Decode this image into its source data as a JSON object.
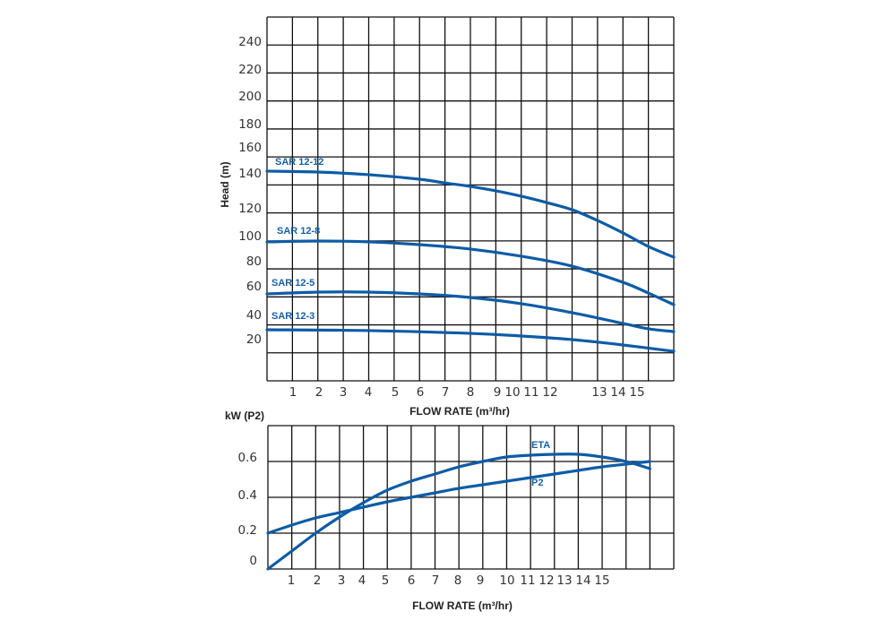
{
  "chart_data": [
    {
      "type": "line",
      "title": "",
      "xlabel": "FLOW RATE (m³/hr)",
      "ylabel": "Head (m)",
      "x_unit_note": "x values are grid-column index 0-16",
      "xlim": [
        0,
        16
      ],
      "ylim": [
        0,
        260
      ],
      "grid": true,
      "x_tick_labels": [
        "1",
        "2",
        "3",
        "4",
        "5",
        "6",
        "7",
        "8",
        "9",
        "10",
        "11",
        "12",
        "13",
        "14",
        "15"
      ],
      "y_tick_labels": [
        "240",
        "220",
        "200",
        "180",
        "160",
        "140",
        "120",
        "100",
        "80",
        "60",
        "40",
        "20"
      ],
      "color": "#0d5ca6",
      "series": [
        {
          "name": "SAR 12-12",
          "x": [
            0,
            2,
            4,
            6,
            7,
            8,
            9,
            10,
            11,
            12,
            13,
            14,
            15,
            16
          ],
          "y": [
            141.6,
            140.9,
            139,
            135.7,
            133,
            130.5,
            127.3,
            123.4,
            118.8,
            113.6,
            105.8,
            96.8,
            87,
            79.2
          ]
        },
        {
          "name": "SAR 12-8",
          "x": [
            0,
            2,
            4,
            6,
            8,
            10,
            12,
            14,
            15,
            16
          ],
          "y": [
            90.3,
            90.9,
            90.3,
            88.3,
            85.1,
            79.9,
            72.7,
            61,
            53.2,
            44.8
          ]
        },
        {
          "name": "SAR 12-5",
          "x": [
            0,
            2,
            4,
            6,
            8,
            10,
            12,
            14,
            15,
            16
          ],
          "y": [
            52.6,
            53.9,
            53.9,
            52.6,
            50,
            45.5,
            39,
            31.2,
            27.3,
            25.3
          ]
        },
        {
          "name": "SAR 12-3",
          "x": [
            0,
            4,
            8,
            10,
            12,
            14,
            16
          ],
          "y": [
            26.6,
            26,
            24,
            22.1,
            19.5,
            15.6,
            11
          ]
        }
      ]
    },
    {
      "type": "line",
      "title": "",
      "xlabel": "FLOW RATE (m³/hr)",
      "ylabel": "kW (P2)",
      "x_unit_note": "x values are grid-column index 0-17",
      "xlim": [
        0,
        17
      ],
      "ylim": [
        0,
        0.8
      ],
      "grid": true,
      "x_tick_labels": [
        "1",
        "2",
        "3",
        "4",
        "5",
        "6",
        "7",
        "8",
        "9",
        "10",
        "11",
        "12",
        "13",
        "14",
        "15"
      ],
      "y_tick_labels": [
        "0.6",
        "0.4",
        "0.2",
        "0"
      ],
      "color": "#0d5ca6",
      "series": [
        {
          "name": "ETA",
          "x": [
            0,
            1,
            2,
            3,
            4,
            5,
            6,
            7,
            8,
            9,
            10,
            11,
            12,
            13,
            14,
            15,
            16
          ],
          "y": [
            0,
            0.1,
            0.2,
            0.29,
            0.37,
            0.44,
            0.49,
            0.53,
            0.57,
            0.6,
            0.625,
            0.635,
            0.64,
            0.64,
            0.625,
            0.6,
            0.56
          ]
        },
        {
          "name": "P2",
          "x": [
            0,
            1,
            2,
            3,
            4,
            5,
            6,
            7,
            8,
            9,
            10,
            11,
            12,
            13,
            14,
            15,
            16
          ],
          "y": [
            0.2,
            0.245,
            0.285,
            0.315,
            0.345,
            0.375,
            0.4,
            0.425,
            0.45,
            0.47,
            0.49,
            0.51,
            0.53,
            0.55,
            0.57,
            0.585,
            0.6
          ]
        }
      ]
    }
  ]
}
